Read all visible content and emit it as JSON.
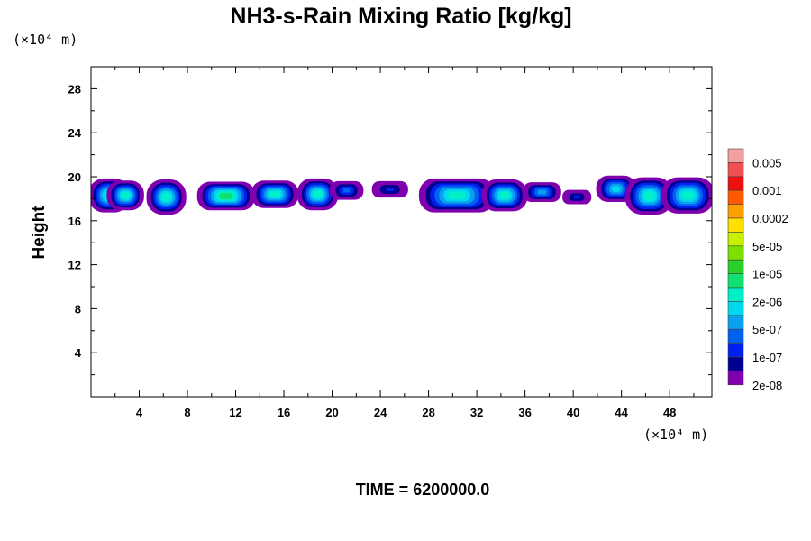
{
  "chart_data": {
    "type": "contour",
    "title": "NH3-s-Rain Mixing Ratio [kg/kg]",
    "ylabel": "Height",
    "x_unit": "(×10⁴ m)",
    "y_unit": "(×10⁴ m)",
    "xlim": [
      0,
      51.5
    ],
    "ylim": [
      0,
      30
    ],
    "x_ticks": [
      4,
      8,
      12,
      16,
      20,
      24,
      28,
      32,
      36,
      40,
      44,
      48
    ],
    "x_tick_labels": [
      "4",
      "8",
      "12",
      "16",
      "20",
      "24",
      "28",
      "32",
      "36",
      "40",
      "44",
      "48"
    ],
    "y_ticks": [
      4,
      8,
      12,
      16,
      20,
      24,
      28
    ],
    "y_tick_labels": [
      "4",
      "8",
      "12",
      "16",
      "20",
      "24",
      "28"
    ],
    "time_label": "TIME = 6200000.0",
    "colorbar": {
      "colors": [
        "#f4a0a0",
        "#f05050",
        "#ee1010",
        "#ff5a00",
        "#ffa000",
        "#ffe000",
        "#c8f000",
        "#7ce000",
        "#28d028",
        "#10e070",
        "#00f0c8",
        "#00d8f0",
        "#0aa0f0",
        "#0060f0",
        "#0020f0",
        "#000090",
        "#8000b0"
      ],
      "labels": [
        "0.005",
        "0.001",
        "0.0002",
        "5e-05",
        "1e-05",
        "2e-06",
        "5e-07",
        "1e-07",
        "2e-08"
      ]
    },
    "layer": {
      "z_base": 17,
      "z_top": 20,
      "peak_band": [
        17.8,
        18.6
      ]
    },
    "cloud_cells": [
      {
        "x_start": 0.0,
        "x_end": 3.0,
        "z_low": 17.0,
        "z_high": 19.9,
        "level": 10
      },
      {
        "x_start": 1.5,
        "x_end": 4.2,
        "z_low": 17.2,
        "z_high": 19.7,
        "level": 10
      },
      {
        "x_start": 4.8,
        "x_end": 7.7,
        "z_low": 16.8,
        "z_high": 19.8,
        "level": 10
      },
      {
        "x_start": 9.0,
        "x_end": 13.4,
        "z_low": 17.2,
        "z_high": 19.6,
        "level": 9
      },
      {
        "x_start": 13.5,
        "x_end": 17.0,
        "z_low": 17.4,
        "z_high": 19.7,
        "level": 10
      },
      {
        "x_start": 17.3,
        "x_end": 20.3,
        "z_low": 17.2,
        "z_high": 19.9,
        "level": 10
      },
      {
        "x_start": 20.0,
        "x_end": 22.4,
        "z_low": 18.0,
        "z_high": 19.5,
        "level": 13
      },
      {
        "x_start": 23.5,
        "x_end": 26.1,
        "z_low": 18.2,
        "z_high": 19.5,
        "level": 14
      },
      {
        "x_start": 27.4,
        "x_end": 33.3,
        "z_low": 17.0,
        "z_high": 19.9,
        "level": 10
      },
      {
        "x_start": 32.6,
        "x_end": 36.0,
        "z_low": 17.1,
        "z_high": 19.8,
        "level": 10
      },
      {
        "x_start": 36.0,
        "x_end": 38.8,
        "z_low": 17.8,
        "z_high": 19.4,
        "level": 12
      },
      {
        "x_start": 39.3,
        "x_end": 41.3,
        "z_low": 17.6,
        "z_high": 18.7,
        "level": 14
      },
      {
        "x_start": 42.1,
        "x_end": 45.0,
        "z_low": 17.8,
        "z_high": 20.0,
        "level": 11
      },
      {
        "x_start": 44.5,
        "x_end": 48.1,
        "z_low": 16.8,
        "z_high": 20.0,
        "level": 10
      },
      {
        "x_start": 47.5,
        "x_end": 51.5,
        "z_low": 16.9,
        "z_high": 20.0,
        "level": 10
      }
    ]
  }
}
